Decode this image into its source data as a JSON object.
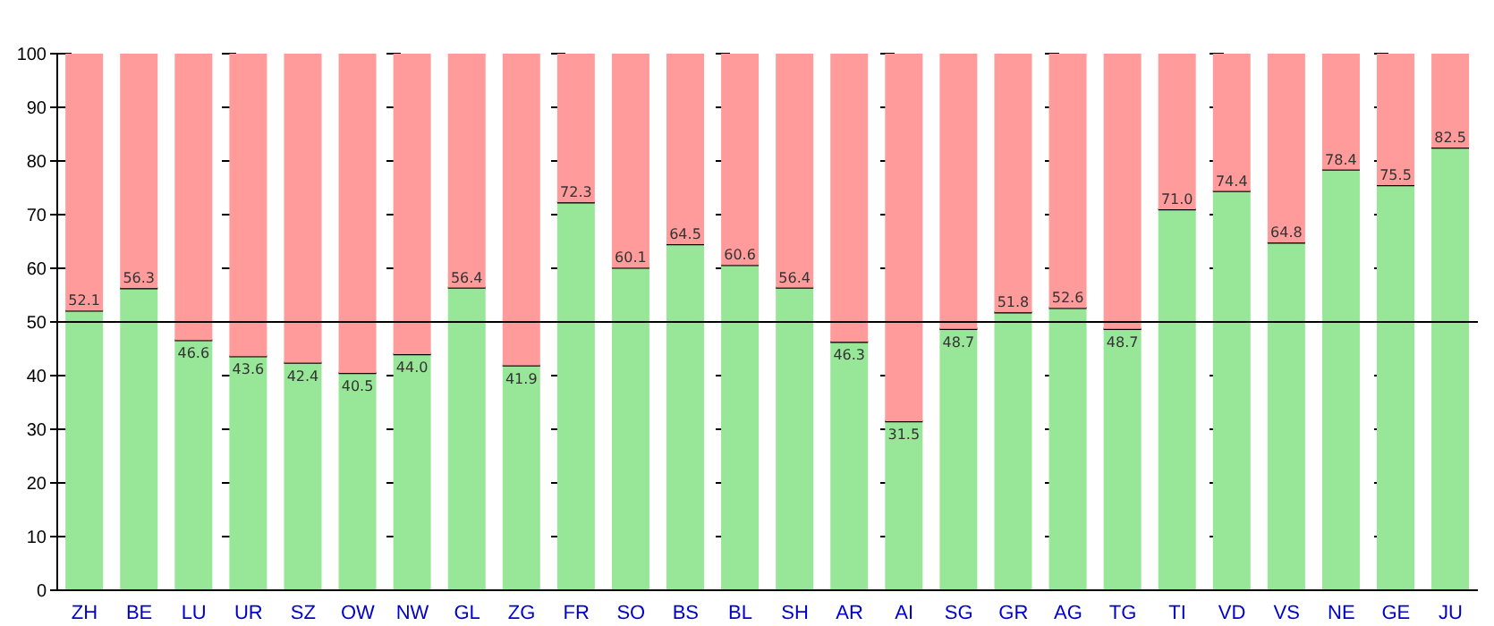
{
  "chart_data": {
    "type": "bar",
    "stacked": true,
    "categories": [
      "ZH",
      "BE",
      "LU",
      "UR",
      "SZ",
      "OW",
      "NW",
      "GL",
      "ZG",
      "FR",
      "SO",
      "BS",
      "BL",
      "SH",
      "AR",
      "AI",
      "SG",
      "GR",
      "AG",
      "TG",
      "TI",
      "VD",
      "VS",
      "NE",
      "GE",
      "JU"
    ],
    "series": [
      {
        "color": "#98e698",
        "values": [
          52.1,
          56.3,
          46.6,
          43.6,
          42.4,
          40.5,
          44.0,
          56.4,
          41.9,
          72.3,
          60.1,
          64.5,
          60.6,
          56.4,
          46.3,
          31.5,
          48.7,
          51.8,
          52.6,
          48.7,
          71.0,
          74.4,
          64.8,
          78.4,
          75.5,
          82.5
        ],
        "value_labels": [
          "52.1",
          "56.3",
          "46.6",
          "43.6",
          "42.4",
          "40.5",
          "44.0",
          "56.4",
          "41.9",
          "72.3",
          "60.1",
          "64.5",
          "60.6",
          "56.4",
          "46.3",
          "31.5",
          "48.7",
          "51.8",
          "52.6",
          "48.7",
          "71.0",
          "74.4",
          "64.8",
          "78.4",
          "75.5",
          "82.5"
        ]
      },
      {
        "color": "#ff9b9b",
        "values": [
          47.9,
          43.7,
          53.4,
          56.4,
          57.6,
          59.5,
          56.0,
          43.6,
          58.1,
          27.7,
          39.9,
          35.5,
          39.4,
          43.6,
          53.7,
          68.5,
          51.3,
          48.2,
          47.4,
          51.3,
          29.0,
          25.6,
          35.2,
          21.6,
          24.5,
          17.5
        ]
      }
    ],
    "ylim": [
      0,
      100
    ],
    "yticks": [
      0,
      10,
      20,
      30,
      40,
      50,
      60,
      70,
      80,
      90,
      100
    ],
    "grid": "y",
    "legend": false,
    "ref_lines": [
      {
        "axis": "y",
        "value": 50,
        "color": "#000000"
      }
    ]
  }
}
